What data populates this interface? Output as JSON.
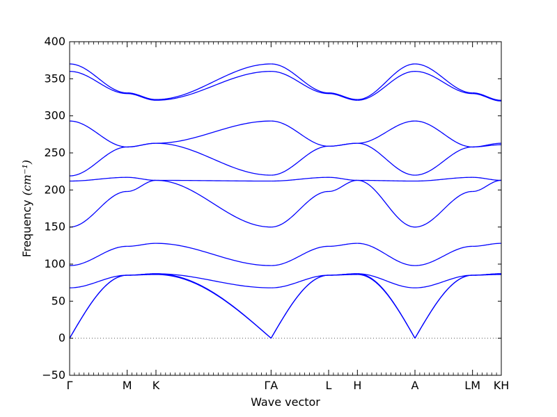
{
  "chart_data": {
    "type": "line",
    "title": "",
    "xlabel": "Wave vector",
    "ylabel": "Frequency",
    "ylabel_unit": "(cm⁻¹)",
    "ylim": [
      -50,
      400
    ],
    "y_ticks": [
      -50,
      0,
      50,
      100,
      150,
      200,
      250,
      300,
      350,
      400
    ],
    "x_tick_labels": [
      "Γ",
      "M",
      "K",
      "ΓA",
      "L",
      "H",
      "A",
      "LM",
      "KH"
    ],
    "high_symmetry_points": [
      0,
      1,
      1.5,
      3.5,
      4.5,
      5.0,
      6.0,
      7.0,
      7.5
    ],
    "xlim": [
      0,
      7.5
    ],
    "zero_line": true,
    "line_color": "#0000ff",
    "segments": [
      {
        "from": "Γ",
        "to": "M",
        "x": [
          0,
          1
        ],
        "series": [
          {
            "values": [
              0,
              85
            ]
          },
          {
            "values": [
              0,
              85
            ]
          },
          {
            "values": [
              68,
              85
            ]
          },
          {
            "values": [
              98,
              124
            ]
          },
          {
            "values": [
              150,
              198
            ]
          },
          {
            "values": [
              212,
              217
            ]
          },
          {
            "values": [
              219,
              258
            ]
          },
          {
            "values": [
              293,
              258
            ]
          },
          {
            "values": [
              360,
              330
            ]
          },
          {
            "values": [
              370,
              331
            ]
          }
        ]
      },
      {
        "from": "M",
        "to": "K",
        "x": [
          1,
          1.5
        ],
        "series": [
          {
            "values": [
              85,
              86
            ]
          },
          {
            "values": [
              85,
              87
            ]
          },
          {
            "values": [
              85,
              87
            ]
          },
          {
            "values": [
              124,
              128
            ]
          },
          {
            "values": [
              198,
              213
            ]
          },
          {
            "values": [
              217,
              213
            ]
          },
          {
            "values": [
              258,
              263
            ]
          },
          {
            "values": [
              258,
              263
            ]
          },
          {
            "values": [
              330,
              321
            ]
          },
          {
            "values": [
              331,
              322
            ]
          }
        ]
      },
      {
        "from": "K",
        "to": "Γ",
        "x": [
          1.5,
          3.5
        ],
        "series": [
          {
            "values": [
              86,
              0
            ]
          },
          {
            "values": [
              87,
              0
            ]
          },
          {
            "values": [
              87,
              68
            ]
          },
          {
            "values": [
              128,
              98
            ]
          },
          {
            "values": [
              213,
              150
            ]
          },
          {
            "values": [
              213,
              212
            ]
          },
          {
            "values": [
              263,
              220
            ]
          },
          {
            "values": [
              263,
              293
            ]
          },
          {
            "values": [
              321,
              360
            ]
          },
          {
            "values": [
              322,
              370
            ]
          }
        ]
      },
      {
        "from": "A",
        "to": "L",
        "x": [
          3.5,
          4.5
        ],
        "series": [
          {
            "values": [
              0,
              85
            ]
          },
          {
            "values": [
              0,
              85
            ]
          },
          {
            "values": [
              68,
              85
            ]
          },
          {
            "values": [
              98,
              124
            ]
          },
          {
            "values": [
              150,
              198
            ]
          },
          {
            "values": [
              212,
              217
            ]
          },
          {
            "values": [
              220,
              259
            ]
          },
          {
            "values": [
              293,
              259
            ]
          },
          {
            "values": [
              360,
              330
            ]
          },
          {
            "values": [
              370,
              331
            ]
          }
        ]
      },
      {
        "from": "L",
        "to": "H",
        "x": [
          4.5,
          5.0
        ],
        "series": [
          {
            "values": [
              85,
              86
            ]
          },
          {
            "values": [
              85,
              87
            ]
          },
          {
            "values": [
              85,
              87
            ]
          },
          {
            "values": [
              124,
              128
            ]
          },
          {
            "values": [
              198,
              213
            ]
          },
          {
            "values": [
              217,
              213
            ]
          },
          {
            "values": [
              259,
              263
            ]
          },
          {
            "values": [
              259,
              263
            ]
          },
          {
            "values": [
              330,
              321
            ]
          },
          {
            "values": [
              331,
              322
            ]
          }
        ]
      },
      {
        "from": "H",
        "to": "A",
        "x": [
          5.0,
          6.0
        ],
        "series": [
          {
            "values": [
              86,
              0
            ]
          },
          {
            "values": [
              87,
              0
            ]
          },
          {
            "values": [
              87,
              68
            ]
          },
          {
            "values": [
              128,
              98
            ]
          },
          {
            "values": [
              213,
              150
            ]
          },
          {
            "values": [
              213,
              212
            ]
          },
          {
            "values": [
              263,
              220
            ]
          },
          {
            "values": [
              263,
              293
            ]
          },
          {
            "values": [
              321,
              360
            ]
          },
          {
            "values": [
              322,
              370
            ]
          }
        ]
      },
      {
        "from": "A",
        "to": "L",
        "x": [
          6.0,
          7.0
        ],
        "series": [
          {
            "values": [
              0,
              85
            ]
          },
          {
            "values": [
              0,
              85
            ]
          },
          {
            "values": [
              68,
              85
            ]
          },
          {
            "values": [
              98,
              124
            ]
          },
          {
            "values": [
              150,
              198
            ]
          },
          {
            "values": [
              212,
              217
            ]
          },
          {
            "values": [
              220,
              258
            ]
          },
          {
            "values": [
              293,
              258
            ]
          },
          {
            "values": [
              360,
              330
            ]
          },
          {
            "values": [
              370,
              331
            ]
          }
        ]
      },
      {
        "from": "M",
        "to": "K",
        "x": [
          7.0,
          7.5
        ],
        "series": [
          {
            "values": [
              85,
              86
            ]
          },
          {
            "values": [
              85,
              87
            ]
          },
          {
            "values": [
              85,
              87
            ]
          },
          {
            "values": [
              124,
              128
            ]
          },
          {
            "values": [
              198,
              213
            ]
          },
          {
            "values": [
              217,
              213
            ]
          },
          {
            "values": [
              258,
              261
            ]
          },
          {
            "values": [
              258,
              263
            ]
          },
          {
            "values": [
              330,
              320
            ]
          },
          {
            "values": [
              331,
              321
            ]
          }
        ]
      }
    ]
  }
}
